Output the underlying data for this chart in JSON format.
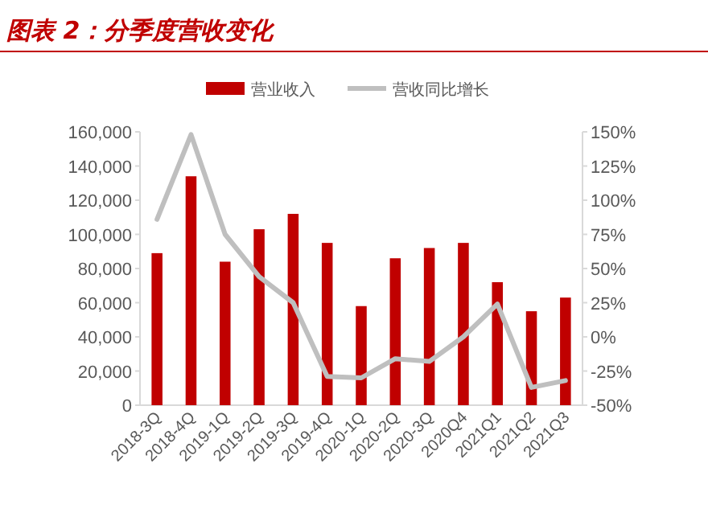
{
  "chart_data": {
    "type": "bar",
    "title": "图表 2：分季度营收变化",
    "categories": [
      "2018-3Q",
      "2018-4Q",
      "2019-1Q",
      "2019-2Q",
      "2019-3Q",
      "2019-4Q",
      "2020-1Q",
      "2020-2Q",
      "2020-3Q",
      "2020Q4",
      "2021Q1",
      "2021Q2",
      "2021Q3"
    ],
    "series": [
      {
        "name": "营业收入",
        "color": "#c00000",
        "values": [
          89000,
          134000,
          84000,
          103000,
          112000,
          95000,
          58000,
          86000,
          92000,
          95000,
          72000,
          55000,
          63000
        ]
      },
      {
        "name": "营收同比增长",
        "type": "line",
        "axis": "y2",
        "color": "#bfbfbf",
        "values": [
          86,
          148,
          75,
          44,
          25,
          -29,
          -30,
          -16,
          -18,
          0,
          24,
          -37,
          -32
        ]
      }
    ],
    "ylim": [
      0,
      160000
    ],
    "yticks": [
      {
        "value": 0,
        "label": "0"
      },
      {
        "value": 20000,
        "label": "20,000"
      },
      {
        "value": 40000,
        "label": "40,000"
      },
      {
        "value": 60000,
        "label": "60,000"
      },
      {
        "value": 80000,
        "label": "80,000"
      },
      {
        "value": 100000,
        "label": "100,000"
      },
      {
        "value": 120000,
        "label": "120,000"
      },
      {
        "value": 140000,
        "label": "140,000"
      },
      {
        "value": 160000,
        "label": "160,000"
      }
    ],
    "y2lim": [
      -50,
      150
    ],
    "y2ticks": [
      {
        "value": -50,
        "label": "-50%"
      },
      {
        "value": -25,
        "label": "-25%"
      },
      {
        "value": 0,
        "label": "0%"
      },
      {
        "value": 25,
        "label": "25%"
      },
      {
        "value": 50,
        "label": "50%"
      },
      {
        "value": 75,
        "label": "75%"
      },
      {
        "value": 100,
        "label": "100%"
      },
      {
        "value": 125,
        "label": "125%"
      },
      {
        "value": 150,
        "label": "150%"
      }
    ],
    "legend": "top",
    "grid": false
  }
}
